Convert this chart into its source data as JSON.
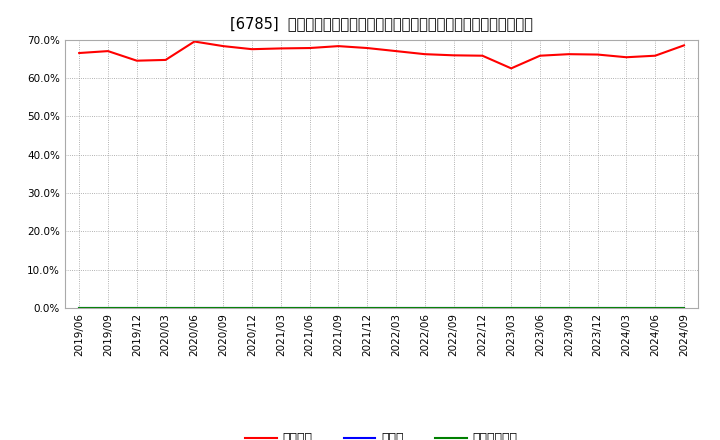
{
  "title": "[6785]  自己資本、のれん、繰延税金資産の総資産に対する比率の推移",
  "x_labels": [
    "2019/06",
    "2019/09",
    "2019/12",
    "2020/03",
    "2020/06",
    "2020/09",
    "2020/12",
    "2021/03",
    "2021/06",
    "2021/09",
    "2021/12",
    "2022/03",
    "2022/06",
    "2022/09",
    "2022/12",
    "2023/03",
    "2023/06",
    "2023/09",
    "2023/12",
    "2024/03",
    "2024/06",
    "2024/09"
  ],
  "equity_ratio": [
    66.5,
    67.0,
    64.5,
    64.7,
    69.5,
    68.3,
    67.5,
    67.7,
    67.8,
    68.3,
    67.8,
    67.0,
    66.2,
    65.9,
    65.8,
    62.5,
    65.8,
    66.2,
    66.1,
    65.4,
    65.8,
    68.5
  ],
  "goodwill_ratio": [
    0.0,
    0.0,
    0.0,
    0.0,
    0.0,
    0.0,
    0.0,
    0.0,
    0.0,
    0.0,
    0.0,
    0.0,
    0.0,
    0.0,
    0.0,
    0.0,
    0.0,
    0.0,
    0.0,
    0.0,
    0.0,
    0.0
  ],
  "deferred_tax_ratio": [
    0.0,
    0.0,
    0.0,
    0.0,
    0.0,
    0.0,
    0.0,
    0.0,
    0.0,
    0.0,
    0.0,
    0.0,
    0.0,
    0.0,
    0.0,
    0.0,
    0.0,
    0.0,
    0.0,
    0.0,
    0.0,
    0.0
  ],
  "equity_color": "#ff0000",
  "goodwill_color": "#0000ff",
  "deferred_tax_color": "#008000",
  "ylim": [
    0.0,
    70.0
  ],
  "yticks": [
    0.0,
    10.0,
    20.0,
    30.0,
    40.0,
    50.0,
    60.0,
    70.0
  ],
  "background_color": "#ffffff",
  "plot_bg_color": "#ffffff",
  "grid_color": "#999999",
  "legend_labels": [
    "自己資本",
    "のれん",
    "繰延税金資産"
  ],
  "title_fontsize": 10.5,
  "tick_fontsize": 7.5,
  "legend_fontsize": 9
}
